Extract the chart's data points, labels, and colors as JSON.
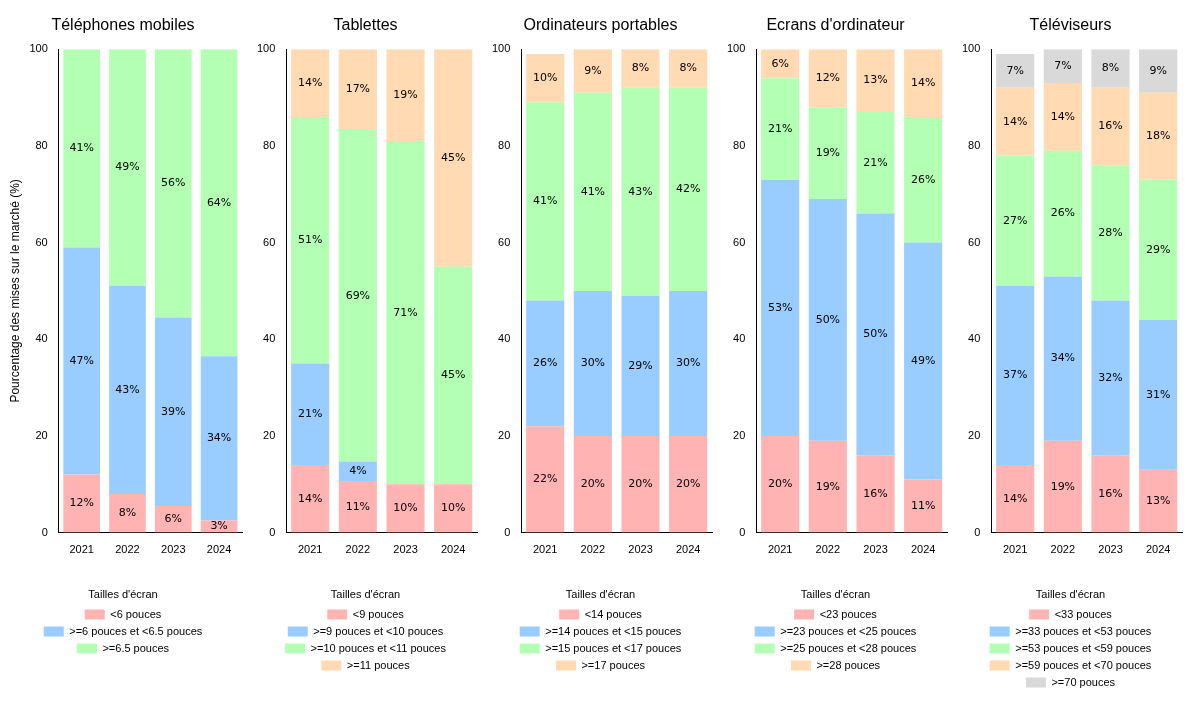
{
  "chart_data": [
    {
      "type": "bar",
      "stacked": true,
      "title": "Téléphones mobiles",
      "ylabel": "Pourcentage des mises sur le marché (%)",
      "legend_title": "Tailles d'écran",
      "legend": "bottom",
      "grid": false,
      "categories": [
        "2021",
        "2022",
        "2023",
        "2024"
      ],
      "ylim": [
        0,
        100
      ],
      "yticks": [
        0,
        20,
        40,
        60,
        80,
        100
      ],
      "series": [
        {
          "name": "<6 pouces",
          "color": "#ffb3b3",
          "values": [
            12,
            8,
            5.5,
            2.5
          ],
          "value_labels": [
            "12%",
            "8%",
            "6%",
            "3%"
          ]
        },
        {
          "name": ">=6 pouces et <6.5 pouces",
          "color": "#99ccff",
          "values": [
            47,
            43,
            39,
            34
          ],
          "value_labels": [
            "47%",
            "43%",
            "39%",
            "34%"
          ]
        },
        {
          "name": ">=6.5 pouces",
          "color": "#b3ffb3",
          "values": [
            41,
            49,
            55.5,
            63.5
          ],
          "value_labels": [
            "41%",
            "49%",
            "56%",
            "64%"
          ]
        }
      ]
    },
    {
      "type": "bar",
      "stacked": true,
      "title": "Tablettes",
      "legend_title": "Tailles d'écran",
      "legend": "bottom",
      "grid": false,
      "categories": [
        "2021",
        "2022",
        "2023",
        "2024"
      ],
      "ylim": [
        0,
        100
      ],
      "yticks": [
        0,
        20,
        40,
        60,
        80,
        100
      ],
      "series": [
        {
          "name": "<9 pouces",
          "color": "#ffb3b3",
          "values": [
            14,
            10.7,
            10,
            10
          ],
          "value_labels": [
            "14%",
            "11%",
            "10%",
            "10%"
          ]
        },
        {
          "name": ">=9 pouces et <10 pouces",
          "color": "#99ccff",
          "values": [
            21,
            4,
            null,
            null
          ],
          "value_labels": [
            "21%",
            "4%",
            null,
            null
          ]
        },
        {
          "name": ">=10 pouces et <11 pouces",
          "color": "#b3ffb3",
          "values": [
            51,
            68.6,
            71,
            45
          ],
          "value_labels": [
            "51%",
            "69%",
            "71%",
            "45%"
          ]
        },
        {
          "name": ">=11 pouces",
          "color": "#ffdab3",
          "values": [
            14,
            16.7,
            19,
            45
          ],
          "value_labels": [
            "14%",
            "17%",
            "19%",
            "45%"
          ]
        }
      ]
    },
    {
      "type": "bar",
      "stacked": true,
      "title": "Ordinateurs portables",
      "legend_title": "Tailles d'écran",
      "legend": "bottom",
      "grid": false,
      "categories": [
        "2021",
        "2022",
        "2023",
        "2024"
      ],
      "ylim": [
        0,
        100
      ],
      "yticks": [
        0,
        20,
        40,
        60,
        80,
        100
      ],
      "series": [
        {
          "name": "<14 pouces",
          "color": "#ffb3b3",
          "values": [
            22,
            20,
            20,
            20
          ],
          "value_labels": [
            "22%",
            "20%",
            "20%",
            "20%"
          ]
        },
        {
          "name": ">=14 pouces et <15 pouces",
          "color": "#99ccff",
          "values": [
            26,
            30,
            29,
            30
          ],
          "value_labels": [
            "26%",
            "30%",
            "29%",
            "30%"
          ]
        },
        {
          "name": ">=15 pouces et <17 pouces",
          "color": "#b3ffb3",
          "values": [
            41,
            41,
            43,
            42
          ],
          "value_labels": [
            "41%",
            "41%",
            "43%",
            "42%"
          ]
        },
        {
          "name": ">=17 pouces",
          "color": "#ffdab3",
          "values": [
            10,
            9,
            8,
            8
          ],
          "value_labels": [
            "10%",
            "9%",
            "8%",
            "8%"
          ]
        }
      ]
    },
    {
      "type": "bar",
      "stacked": true,
      "title": "Ecrans d'ordinateur",
      "legend_title": "Tailles d'écran",
      "legend": "bottom",
      "grid": false,
      "categories": [
        "2021",
        "2022",
        "2023",
        "2024"
      ],
      "ylim": [
        0,
        100
      ],
      "yticks": [
        0,
        20,
        40,
        60,
        80,
        100
      ],
      "series": [
        {
          "name": "<23 pouces",
          "color": "#ffb3b3",
          "values": [
            20,
            19,
            16,
            11
          ],
          "value_labels": [
            "20%",
            "19%",
            "16%",
            "11%"
          ]
        },
        {
          "name": ">=23 pouces et <25 pouces",
          "color": "#99ccff",
          "values": [
            53,
            50,
            50,
            49
          ],
          "value_labels": [
            "53%",
            "50%",
            "50%",
            "49%"
          ]
        },
        {
          "name": ">=25 pouces et <28 pouces",
          "color": "#b3ffb3",
          "values": [
            21,
            19,
            21,
            26
          ],
          "value_labels": [
            "21%",
            "19%",
            "21%",
            "26%"
          ]
        },
        {
          "name": ">=28 pouces",
          "color": "#ffdab3",
          "values": [
            6,
            12,
            13,
            14
          ],
          "value_labels": [
            "6%",
            "12%",
            "13%",
            "14%"
          ]
        }
      ]
    },
    {
      "type": "bar",
      "stacked": true,
      "title": "Téléviseurs",
      "legend_title": "Tailles d'écran",
      "legend": "bottom",
      "grid": false,
      "categories": [
        "2021",
        "2022",
        "2023",
        "2024"
      ],
      "ylim": [
        0,
        100
      ],
      "yticks": [
        0,
        20,
        40,
        60,
        80,
        100
      ],
      "series": [
        {
          "name": "<33 pouces",
          "color": "#ffb3b3",
          "values": [
            14,
            19,
            16,
            13
          ],
          "value_labels": [
            "14%",
            "19%",
            "16%",
            "13%"
          ]
        },
        {
          "name": ">=33 pouces et <53 pouces",
          "color": "#99ccff",
          "values": [
            37,
            34,
            32,
            31
          ],
          "value_labels": [
            "37%",
            "34%",
            "32%",
            "31%"
          ]
        },
        {
          "name": ">=53 pouces et <59 pouces",
          "color": "#b3ffb3",
          "values": [
            27,
            26,
            28,
            29
          ],
          "value_labels": [
            "27%",
            "26%",
            "28%",
            "29%"
          ]
        },
        {
          "name": ">=59 pouces et <70 pouces",
          "color": "#ffdab3",
          "values": [
            14,
            14,
            16,
            18
          ],
          "value_labels": [
            "14%",
            "14%",
            "16%",
            "18%"
          ]
        },
        {
          "name": ">=70 pouces",
          "color": "#d9d9d9",
          "values": [
            7,
            7,
            8,
            9
          ],
          "value_labels": [
            "7%",
            "7%",
            "8%",
            "9%"
          ]
        }
      ]
    }
  ]
}
